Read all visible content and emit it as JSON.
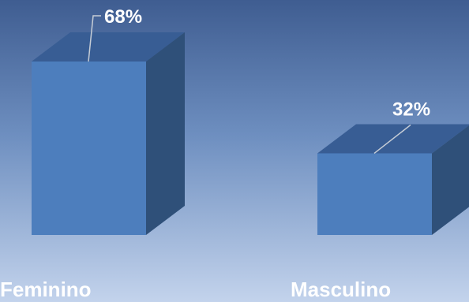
{
  "chart_data": {
    "type": "bar",
    "categories": [
      "Feminino",
      "Masculino"
    ],
    "values": [
      68,
      32
    ],
    "value_labels": [
      "68%",
      "32%"
    ],
    "ylim": [
      0,
      100
    ],
    "grid": false,
    "legend": "none",
    "style": "3d-columns"
  },
  "colors": {
    "background_top": "#3F5D91",
    "background_mid": "#6E8FC0",
    "background_bottom": "#C3D3EC",
    "bar_front": "#4D7EBD",
    "bar_top": "#385D94",
    "bar_side": "#2F5079",
    "leader_line": "#C6CDD6",
    "label_text": "#FFFFFF"
  }
}
